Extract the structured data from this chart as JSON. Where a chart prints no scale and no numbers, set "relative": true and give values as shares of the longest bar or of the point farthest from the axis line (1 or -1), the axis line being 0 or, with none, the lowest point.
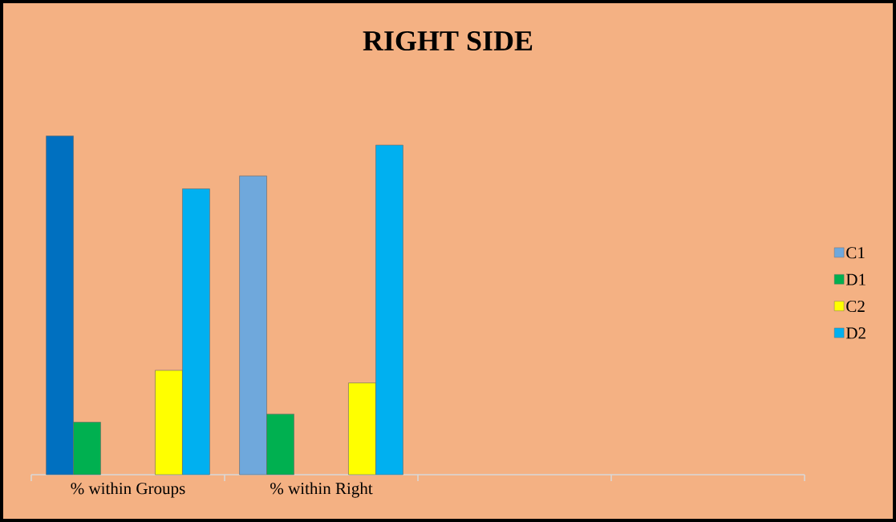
{
  "chart_data": {
    "type": "bar",
    "title": "RIGHT SIDE",
    "relative": true,
    "legend": "right",
    "categories": [
      "% within Groups",
      "% within Right",
      null,
      null
    ],
    "series": [
      {
        "name": "C1",
        "color": "#6fa8dc",
        "colors": [
          "#0070c0",
          "#6fa8dc",
          null,
          null
        ],
        "values": [
          1,
          0.882,
          null,
          null
        ]
      },
      {
        "name": "D1",
        "color": "#00b050",
        "values": [
          0.155,
          0.179,
          null,
          null
        ]
      },
      {
        "name": "C2",
        "color": "#ffff00",
        "values": [
          0.308,
          0.271,
          null,
          null
        ]
      },
      {
        "name": "D2",
        "color": "#00b0f0",
        "values": [
          0.844,
          0.973,
          null,
          null
        ]
      }
    ]
  }
}
